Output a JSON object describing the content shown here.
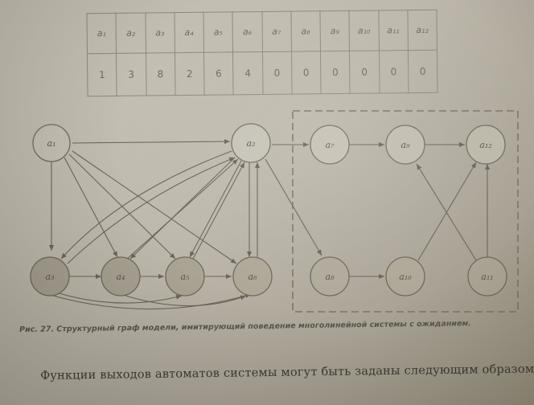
{
  "table": {
    "header": [
      "a₁",
      "a₂",
      "a₃",
      "a₄",
      "a₅",
      "a₆",
      "a₇",
      "a₈",
      "a₉",
      "a₁₀",
      "a₁₁",
      "a₁₂"
    ],
    "values": [
      "1",
      "3",
      "8",
      "2",
      "6",
      "4",
      "0",
      "0",
      "0",
      "0",
      "0",
      "0"
    ]
  },
  "graph": {
    "nodes": [
      {
        "id": "n1",
        "label": "a₁"
      },
      {
        "id": "n2",
        "label": "a₂"
      },
      {
        "id": "n3",
        "label": "a₃"
      },
      {
        "id": "n4",
        "label": "a₄"
      },
      {
        "id": "n5",
        "label": "a₅"
      },
      {
        "id": "n6",
        "label": "a₆"
      },
      {
        "id": "n7",
        "label": "a₇"
      },
      {
        "id": "n8",
        "label": "a₈"
      },
      {
        "id": "n9",
        "label": "a₉"
      },
      {
        "id": "n10",
        "label": "a₁₀"
      },
      {
        "id": "n11",
        "label": "a₁₁"
      },
      {
        "id": "n12",
        "label": "a₁₂"
      }
    ]
  },
  "caption": "Рис. 27. Структурный граф модели, имитирующий поведение многолинейной системы с ожиданием.",
  "body_text": "Функции выходов автоматов системы могут быть заданы следующим образом:"
}
